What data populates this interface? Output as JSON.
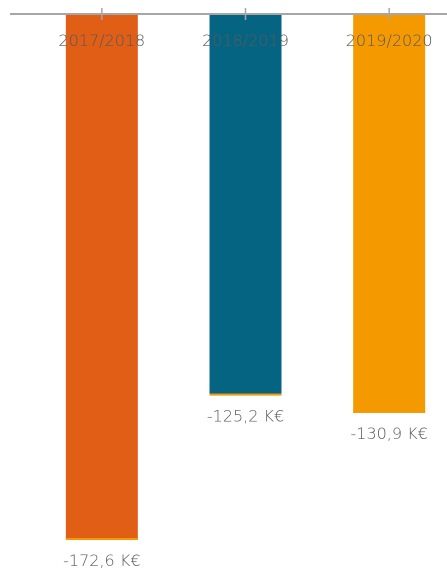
{
  "chart_data": {
    "type": "bar",
    "categories": [
      "2017/2018",
      "2018/2019",
      "2019/2020"
    ],
    "values": [
      -172.6,
      -125.2,
      -130.9
    ],
    "value_labels": [
      "-172,6 K€",
      "-125,2 K€",
      "-130,9 K€"
    ],
    "unit": "K€",
    "title": "",
    "xlabel": "",
    "ylabel": "",
    "ylim": [
      -172.6,
      0
    ],
    "grid": false,
    "legend": "none",
    "colors": [
      "#E05E16",
      "#066483",
      "#F49A00"
    ],
    "baseline_color": "#A6A6A6",
    "bar_end_line_color": "#F49A00"
  }
}
